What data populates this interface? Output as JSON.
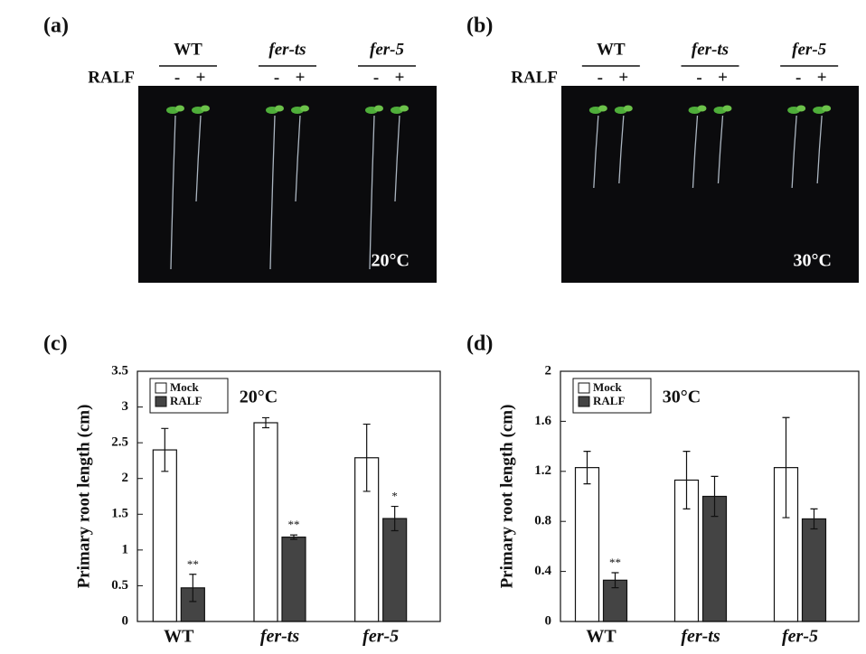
{
  "photos": [
    {
      "label": "(a)",
      "genotypes": [
        "WT",
        "fer-ts",
        "fer-5"
      ],
      "treatment": "RALF",
      "signs": [
        "-",
        "+"
      ],
      "temperature": "20°C"
    },
    {
      "label": "(b)",
      "genotypes": [
        "WT",
        "fer-ts",
        "fer-5"
      ],
      "treatment": "RALF",
      "signs": [
        "-",
        "+"
      ],
      "temperature": "30°C"
    }
  ],
  "chart_data": [
    {
      "type": "bar",
      "panel": "(c)",
      "title": "20°C",
      "ylabel": "Primary root length (cm)",
      "categories": [
        "WT",
        "fer-ts",
        "fer-5"
      ],
      "series": [
        {
          "name": "Mock",
          "color": "#ffffff",
          "values": [
            2.4,
            2.78,
            2.29
          ],
          "errors": [
            0.3,
            0.07,
            0.47
          ]
        },
        {
          "name": "RALF",
          "color": "#444444",
          "values": [
            0.47,
            1.18,
            1.44
          ],
          "errors": [
            0.19,
            0.03,
            0.17
          ]
        }
      ],
      "annotations": [
        {
          "text": "**",
          "category": "WT",
          "series": "RALF"
        },
        {
          "text": "**",
          "category": "fer-ts",
          "series": "RALF"
        },
        {
          "text": "*",
          "category": "fer-5",
          "series": "RALF"
        }
      ],
      "ylim": [
        0,
        3.5
      ],
      "yticks": [
        0,
        0.5,
        1,
        1.5,
        2,
        2.5,
        3,
        3.5
      ],
      "legend": "upper left",
      "grid": false
    },
    {
      "type": "bar",
      "panel": "(d)",
      "title": "30°C",
      "ylabel": "Primary root length (cm)",
      "categories": [
        "WT",
        "fer-ts",
        "fer-5"
      ],
      "series": [
        {
          "name": "Mock",
          "color": "#ffffff",
          "values": [
            1.23,
            1.13,
            1.23
          ],
          "errors": [
            0.13,
            0.23,
            0.4
          ]
        },
        {
          "name": "RALF",
          "color": "#444444",
          "values": [
            0.33,
            1.0,
            0.82
          ],
          "errors": [
            0.06,
            0.16,
            0.08
          ]
        }
      ],
      "annotations": [
        {
          "text": "**",
          "category": "WT",
          "series": "RALF"
        }
      ],
      "ylim": [
        0,
        2
      ],
      "yticks": [
        0,
        0.4,
        0.8,
        1.2,
        1.6,
        2
      ],
      "legend": "upper left",
      "grid": false
    }
  ]
}
